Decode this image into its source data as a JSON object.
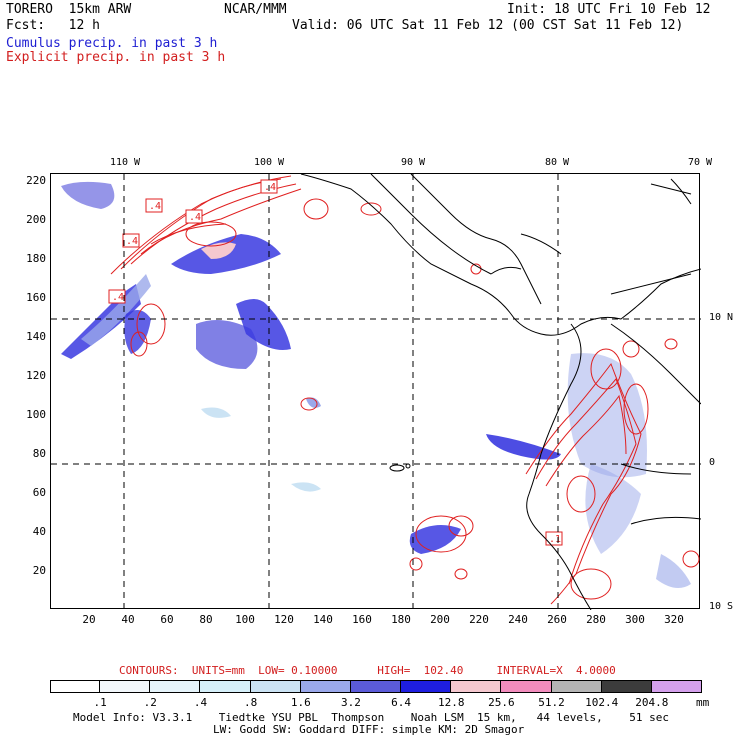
{
  "header": {
    "model": "TORERO  15km ARW",
    "center": "NCAR/MMM",
    "init": "Init: 18 UTC Fri 10 Feb 12",
    "fcst": "Fcst:   12 h",
    "valid": "Valid: 06 UTC Sat 11 Feb 12 (00 CST Sat 11 Feb 12)",
    "legend_cumulus": "Cumulus precip. in past 3 h",
    "legend_explicit": "Explicit precip. in past 3 h"
  },
  "map": {
    "longitude_labels": [
      "110 W",
      "100 W",
      "90 W",
      "80 W",
      "70 W"
    ],
    "latitude_labels": [
      "10 N",
      "0",
      "10 S"
    ],
    "y_axis": [
      "220",
      "200",
      "180",
      "160",
      "140",
      "120",
      "100",
      "80",
      "60",
      "40",
      "20"
    ],
    "x_axis": [
      "20",
      "40",
      "60",
      "80",
      "100",
      "120",
      "140",
      "160",
      "180",
      "200",
      "220",
      "240",
      "260",
      "280",
      "300",
      "320"
    ],
    "contour_labels": [
      ".4",
      ".4",
      ".4",
      ".4",
      ".4",
      ".1"
    ],
    "colors": {
      "cumulus": "#2a2ae0",
      "explicit": "#e02020",
      "coast": "#000000"
    }
  },
  "footer": {
    "contours_line": "CONTOURS:  UNITS=mm  LOW= 0.10000      HIGH=  102.40     INTERVAL=X  4.0000",
    "colorbar_labels": [
      ".1",
      ".2",
      ".4",
      ".8",
      "1.6",
      "3.2",
      "6.4",
      "12.8",
      "25.6",
      "51.2",
      "102.4",
      "204.8"
    ],
    "colorbar_units": "mm",
    "colorbar_colors": [
      "#ffffff",
      "#f2f7fb",
      "#e6f4fb",
      "#d6f0fa",
      "#cbe3f4",
      "#9aa8ea",
      "#5b5bd8",
      "#1e1ee0",
      "#f5c8cf",
      "#f28cbd",
      "#b4b4b4",
      "#3c3c3c",
      "#d4a0ec"
    ],
    "info_line1": "Model Info: V3.3.1    Tiedtke YSU PBL  Thompson    Noah LSM  15 km,   44 levels,    51 sec",
    "info_line2": "LW: Godd SW: Goddard DIFF: simple KM: 2D Smagor"
  }
}
